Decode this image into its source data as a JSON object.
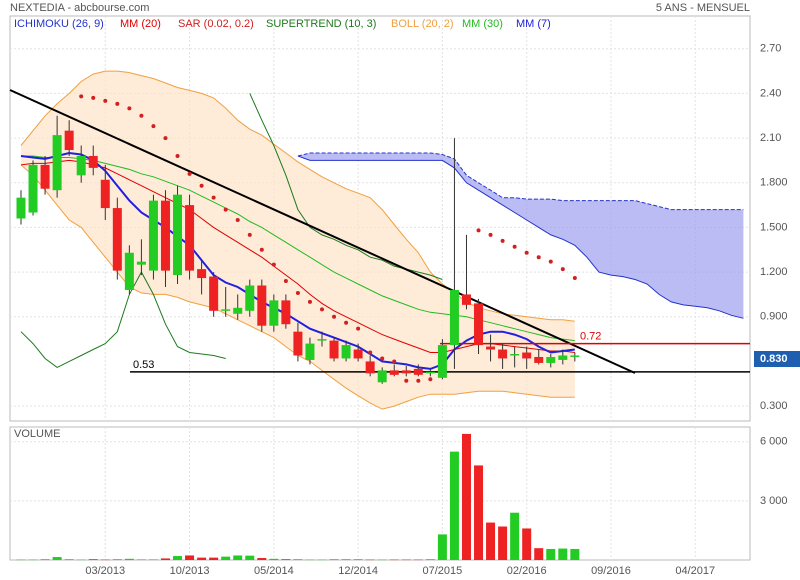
{
  "chart_data": [
    {
      "type": "candlestick",
      "title": "NEXTEDIA - abcbourse.com",
      "subtitle": "5 ANS - MENSUEL",
      "price_tag": "0.830",
      "up_color": "#22cc22",
      "down_color": "#ee2222",
      "ylim": [
        0.2,
        2.92
      ],
      "yticks": [
        {
          "value": 0.3,
          "label": "0.300"
        },
        {
          "value": 0.9,
          "label": "0.900"
        },
        {
          "value": 1.2,
          "label": "1.200"
        },
        {
          "value": 1.5,
          "label": "1.500"
        },
        {
          "value": 1.8,
          "label": "1.800"
        },
        {
          "value": 2.1,
          "label": "2.10"
        },
        {
          "value": 2.4,
          "label": "2.40"
        },
        {
          "value": 2.7,
          "label": "2.70"
        }
      ],
      "grid": true,
      "open": [
        1.56,
        1.6,
        1.92,
        1.75,
        2.15,
        1.85,
        1.98,
        1.82,
        1.63,
        1.08,
        1.25,
        1.21,
        1.68,
        1.18,
        1.65,
        1.22,
        1.17,
        0.94,
        0.92,
        0.94,
        1.11,
        0.84,
        1.01,
        0.8,
        0.61,
        0.74,
        0.74,
        0.62,
        0.68,
        0.6,
        0.46,
        0.54,
        0.54,
        0.55,
        0.52,
        0.49,
        0.71,
        1.05,
        0.99,
        0.7,
        0.68,
        0.64,
        0.66,
        0.63,
        0.59,
        0.61,
        0.63,
        null,
        null,
        null,
        null,
        null,
        null,
        null,
        null,
        null,
        null,
        null,
        null,
        null,
        null
      ],
      "high": [
        1.75,
        1.95,
        1.98,
        2.25,
        2.22,
        2.05,
        2.05,
        1.92,
        1.7,
        1.38,
        1.42,
        1.72,
        1.75,
        1.78,
        1.72,
        1.28,
        1.2,
        1.1,
        1.05,
        1.15,
        1.15,
        1.05,
        1.05,
        0.86,
        0.76,
        0.8,
        0.76,
        0.74,
        0.72,
        0.64,
        0.56,
        0.58,
        0.57,
        0.58,
        0.55,
        0.75,
        2.1,
        1.45,
        1.02,
        0.78,
        0.72,
        0.7,
        0.7,
        0.68,
        0.65,
        0.68,
        0.66,
        null,
        null,
        null,
        null,
        null,
        null,
        null,
        null,
        null,
        null,
        null,
        null,
        null,
        null
      ],
      "low": [
        1.52,
        1.58,
        1.72,
        1.7,
        1.98,
        1.8,
        1.85,
        1.55,
        1.15,
        1.05,
        1.18,
        1.15,
        1.1,
        1.12,
        1.15,
        1.05,
        0.9,
        0.9,
        0.88,
        0.9,
        0.8,
        0.8,
        0.82,
        0.6,
        0.58,
        0.7,
        0.6,
        0.6,
        0.6,
        0.5,
        0.45,
        0.5,
        0.5,
        0.5,
        0.5,
        0.48,
        0.55,
        0.95,
        0.65,
        0.6,
        0.55,
        0.56,
        0.55,
        0.58,
        0.56,
        0.58,
        0.6,
        null,
        null,
        null,
        null,
        null,
        null,
        null,
        null,
        null,
        null,
        null,
        null,
        null,
        null
      ],
      "close": [
        1.7,
        1.92,
        1.76,
        2.12,
        2.02,
        1.98,
        1.9,
        1.63,
        1.21,
        1.33,
        1.27,
        1.68,
        1.21,
        1.72,
        1.21,
        1.16,
        0.94,
        0.95,
        0.96,
        1.11,
        0.84,
        1.01,
        0.85,
        0.64,
        0.72,
        0.75,
        0.62,
        0.71,
        0.62,
        0.52,
        0.54,
        0.51,
        0.52,
        0.51,
        0.53,
        0.71,
        1.08,
        0.98,
        0.71,
        0.68,
        0.62,
        0.65,
        0.62,
        0.59,
        0.63,
        0.64,
        0.64,
        null,
        null,
        null,
        null,
        null,
        null,
        null,
        null,
        null,
        null,
        null,
        null,
        null,
        null
      ],
      "series": [
        {
          "name": "ICHIMOKU (26, 9)",
          "color": "#2233cc",
          "fill": "#a0a0f0",
          "span_a": [
            null,
            null,
            null,
            null,
            null,
            null,
            null,
            null,
            null,
            null,
            null,
            null,
            null,
            null,
            null,
            null,
            null,
            null,
            null,
            null,
            null,
            null,
            null,
            1.98,
            2.0,
            2.0,
            2.0,
            2.0,
            2.0,
            2.0,
            2.0,
            2.0,
            2.0,
            2.0,
            2.0,
            1.99,
            1.96,
            1.85,
            1.8,
            1.75,
            1.7,
            1.7,
            1.69,
            1.69,
            1.69,
            1.68,
            1.68,
            1.68,
            1.68,
            1.68,
            1.68,
            1.68,
            1.66,
            1.64,
            1.62,
            1.62,
            1.62,
            1.62,
            1.62,
            1.62,
            1.62
          ],
          "span_b": [
            null,
            null,
            null,
            null,
            null,
            null,
            null,
            null,
            null,
            null,
            null,
            null,
            null,
            null,
            null,
            null,
            null,
            null,
            null,
            null,
            null,
            null,
            null,
            1.98,
            1.95,
            1.95,
            1.95,
            1.95,
            1.95,
            1.95,
            1.95,
            1.95,
            1.95,
            1.95,
            1.95,
            1.95,
            1.9,
            1.8,
            1.75,
            1.7,
            1.65,
            1.6,
            1.55,
            1.5,
            1.45,
            1.42,
            1.38,
            1.3,
            1.2,
            1.18,
            1.17,
            1.15,
            1.12,
            1.05,
            1.0,
            0.98,
            0.97,
            0.96,
            0.94,
            0.91,
            0.89
          ]
        },
        {
          "name": "MM (20)",
          "color": "#e00000",
          "values": [
            1.92,
            1.93,
            1.93,
            1.94,
            1.95,
            1.94,
            1.92,
            1.9,
            1.86,
            1.82,
            1.78,
            1.74,
            1.7,
            1.66,
            1.62,
            1.56,
            1.5,
            1.45,
            1.4,
            1.35,
            1.3,
            1.24,
            1.18,
            1.12,
            1.05,
            0.99,
            0.94,
            0.9,
            0.86,
            0.82,
            0.78,
            0.75,
            0.72,
            0.69,
            0.66,
            0.66,
            0.68,
            0.7,
            0.72,
            0.72,
            0.71,
            0.7,
            0.69,
            0.68,
            0.67,
            0.67,
            0.66,
            null,
            null,
            null,
            null,
            null,
            null,
            null,
            null,
            null,
            null,
            null,
            null,
            null,
            null
          ]
        },
        {
          "name": "SAR (0.02, 0.2)",
          "color": "#d02020",
          "style": "dots",
          "values": [
            null,
            null,
            null,
            null,
            null,
            2.38,
            2.37,
            2.35,
            2.33,
            2.3,
            2.25,
            2.18,
            2.1,
            1.98,
            1.86,
            1.78,
            1.7,
            1.62,
            1.55,
            1.45,
            1.35,
            1.25,
            1.14,
            1.06,
            1.0,
            0.95,
            0.9,
            0.86,
            0.82,
            0.66,
            0.62,
            0.6,
            0.47,
            0.47,
            0.48,
            null,
            null,
            null,
            1.48,
            1.45,
            1.41,
            1.37,
            1.33,
            1.3,
            1.27,
            1.22,
            1.16,
            null,
            null,
            null,
            null,
            null,
            null,
            null,
            null,
            null,
            null,
            null,
            null,
            null,
            null
          ]
        },
        {
          "name": "SUPERTREND (10, 3)",
          "color": "#1e7a1e",
          "values": [
            0.8,
            0.72,
            0.62,
            0.56,
            0.6,
            0.64,
            0.68,
            0.72,
            0.8,
            1.05,
            1.2,
            1.05,
            0.85,
            0.7,
            0.66,
            0.65,
            0.64,
            0.62,
            null,
            2.4,
            2.22,
            2.05,
            1.85,
            1.62,
            1.5,
            1.45,
            1.42,
            1.38,
            1.35,
            1.3,
            1.28,
            1.24,
            1.22,
            1.2,
            1.18,
            1.15,
            null,
            null,
            null,
            null,
            null,
            null,
            null,
            null,
            null,
            null,
            null,
            null,
            null,
            null,
            null,
            null,
            null,
            null,
            null,
            null,
            null,
            null,
            null,
            null,
            null
          ]
        },
        {
          "name": "BOLL (20, 2)",
          "color": "#f0a040",
          "fill": "#fde3c8",
          "upper": [
            2.05,
            2.15,
            2.25,
            2.33,
            2.4,
            2.48,
            2.53,
            2.55,
            2.55,
            2.54,
            2.52,
            2.5,
            2.47,
            2.44,
            2.42,
            2.4,
            2.37,
            2.3,
            2.22,
            2.16,
            2.12,
            2.06,
            2.0,
            1.94,
            1.89,
            1.84,
            1.8,
            1.76,
            1.73,
            1.7,
            1.62,
            1.52,
            1.42,
            1.33,
            1.2,
            1.12,
            1.06,
            1.0,
            0.96,
            0.94,
            0.92,
            0.91,
            0.9,
            0.89,
            0.88,
            0.88,
            0.87,
            null,
            null,
            null,
            null,
            null,
            null,
            null,
            null,
            null,
            null,
            null,
            null,
            null,
            null
          ],
          "lower": [
            1.92,
            1.85,
            1.75,
            1.65,
            1.55,
            1.5,
            1.4,
            1.3,
            1.2,
            1.1,
            1.06,
            1.05,
            1.05,
            1.03,
            1.0,
            0.98,
            0.96,
            0.92,
            0.88,
            0.84,
            0.8,
            0.76,
            0.7,
            0.64,
            0.6,
            0.54,
            0.48,
            0.42,
            0.37,
            0.32,
            0.28,
            0.3,
            0.33,
            0.36,
            0.38,
            0.38,
            0.38,
            0.39,
            0.4,
            0.4,
            0.4,
            0.39,
            0.38,
            0.37,
            0.36,
            0.36,
            0.36,
            null,
            null,
            null,
            null,
            null,
            null,
            null,
            null,
            null,
            null,
            null,
            null,
            null,
            null
          ]
        },
        {
          "name": "MM (30)",
          "color": "#22bb22",
          "values": [
            1.98,
            1.98,
            1.97,
            1.97,
            1.97,
            1.96,
            1.95,
            1.93,
            1.91,
            1.89,
            1.86,
            1.84,
            1.81,
            1.78,
            1.75,
            1.71,
            1.67,
            1.63,
            1.59,
            1.54,
            1.5,
            1.45,
            1.4,
            1.35,
            1.3,
            1.25,
            1.2,
            1.16,
            1.12,
            1.08,
            1.04,
            1.01,
            0.98,
            0.95,
            0.93,
            0.92,
            0.91,
            0.9,
            0.88,
            0.86,
            0.84,
            0.82,
            0.8,
            0.78,
            0.76,
            0.75,
            0.74,
            null,
            null,
            null,
            null,
            null,
            null,
            null,
            null,
            null,
            null,
            null,
            null,
            null,
            null
          ]
        },
        {
          "name": "MM (7)",
          "color": "#2020e0",
          "width": 2,
          "values": [
            1.98,
            1.97,
            1.96,
            1.98,
            2.0,
            1.99,
            1.95,
            1.88,
            1.78,
            1.68,
            1.6,
            1.55,
            1.5,
            1.44,
            1.38,
            1.28,
            1.18,
            1.13,
            1.1,
            1.05,
            1.0,
            0.96,
            0.92,
            0.87,
            0.82,
            0.79,
            0.76,
            0.73,
            0.7,
            0.65,
            0.6,
            0.59,
            0.58,
            0.56,
            0.55,
            0.58,
            0.68,
            0.74,
            0.78,
            0.8,
            0.8,
            0.78,
            0.75,
            0.7,
            0.66,
            0.67,
            0.68,
            null,
            null,
            null,
            null,
            null,
            null,
            null,
            null,
            null,
            null,
            null,
            null,
            null,
            null
          ]
        }
      ],
      "levels": [
        {
          "value": 0.72,
          "color": "#e00000"
        },
        {
          "value": 0.53,
          "color": "#000000"
        }
      ]
    },
    {
      "type": "bar",
      "title": "VOLUME",
      "ylim": [
        0,
        6750
      ],
      "yticks": [
        {
          "value": 3000,
          "label": "3 000"
        },
        {
          "value": 6000,
          "label": "6 000"
        }
      ],
      "categories": [
        null,
        null,
        null,
        null,
        null,
        null,
        null,
        "03/2013",
        null,
        null,
        null,
        null,
        null,
        null,
        "10/2013",
        null,
        null,
        null,
        null,
        null,
        null,
        "05/2014",
        null,
        null,
        null,
        null,
        null,
        null,
        "12/2014",
        null,
        null,
        null,
        null,
        null,
        null,
        "07/2015",
        null,
        null,
        null,
        null,
        null,
        null,
        "02/2016",
        null,
        null,
        null,
        null,
        null,
        null,
        "09/2016",
        null,
        null,
        null,
        null,
        null,
        null,
        "04/2017",
        null,
        null,
        null,
        null
      ],
      "values": [
        20,
        20,
        30,
        150,
        30,
        20,
        40,
        20,
        30,
        60,
        30,
        30,
        80,
        200,
        230,
        120,
        120,
        170,
        230,
        220,
        100,
        60,
        40,
        30,
        20,
        20,
        30,
        40,
        30,
        20,
        20,
        20,
        20,
        20,
        40,
        1300,
        5500,
        6400,
        4800,
        1900,
        1700,
        2400,
        1600,
        600,
        560,
        580,
        560,
        null,
        null,
        null,
        null,
        null,
        null,
        null,
        null,
        null,
        null,
        null,
        null,
        null,
        null
      ]
    }
  ]
}
